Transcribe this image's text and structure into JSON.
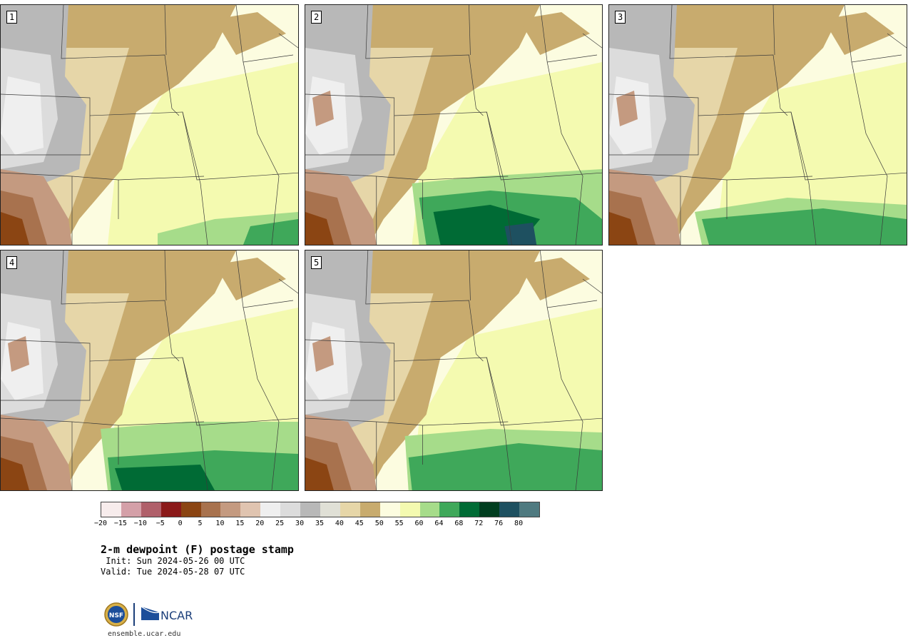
{
  "panels": [
    {
      "number": "1"
    },
    {
      "number": "2"
    },
    {
      "number": "3"
    },
    {
      "number": "4"
    },
    {
      "number": "5"
    }
  ],
  "legend": {
    "tick_labels": [
      "−20",
      "−15",
      "−10",
      "−5",
      "0",
      "5",
      "10",
      "15",
      "20",
      "25",
      "30",
      "35",
      "40",
      "45",
      "50",
      "55",
      "60",
      "64",
      "68",
      "72",
      "76",
      "80"
    ],
    "colors": [
      "#f7ecec",
      "#d4a0a8",
      "#b0606a",
      "#8b1a1a",
      "#8b4513",
      "#a8724e",
      "#c49a80",
      "#e0c4b0",
      "#efefef",
      "#dcdcdc",
      "#b8b8b8",
      "#e0e0d6",
      "#e6d6a8",
      "#c8ab6e",
      "#fcfce0",
      "#f4fab0",
      "#a6dc8a",
      "#3fa85a",
      "#006b35",
      "#003d1f",
      "#1e5060",
      "#4f7a80"
    ]
  },
  "title": "2-m dewpoint (F) postage stamp",
  "init": " Init: Sun 2024-05-26 00 UTC",
  "valid": "Valid: Tue 2024-05-28 07 UTC",
  "logos": {
    "nsf": "NSF",
    "ncar": "NCAR"
  },
  "footer_url": "ensemble.ucar.edu"
}
